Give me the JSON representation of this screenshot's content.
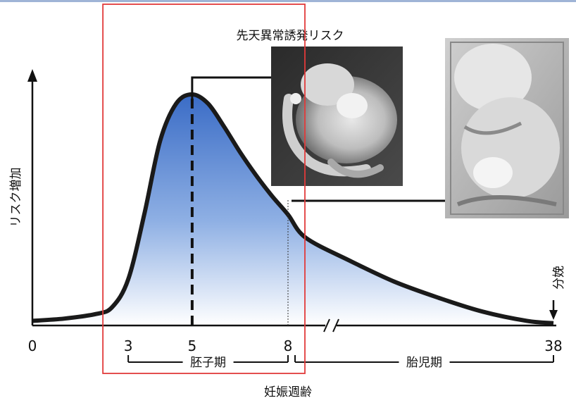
{
  "chart_data": {
    "type": "area",
    "title": "先天異常誘発リスク",
    "xlabel": "妊娠週齢",
    "ylabel": "リスク増加",
    "x_ticks": [
      "0",
      "3",
      "5",
      "8",
      "38"
    ],
    "x_tick_values": [
      0,
      3,
      5,
      8,
      38
    ],
    "axis_break_after": 8,
    "curve": {
      "x": [
        0,
        1,
        2,
        2.5,
        3,
        3.5,
        4,
        4.5,
        5,
        5.5,
        6,
        6.5,
        7,
        7.5,
        8,
        10,
        15,
        20,
        25,
        30,
        35,
        38
      ],
      "y": [
        2,
        3,
        5,
        8,
        20,
        48,
        80,
        96,
        100,
        96,
        86,
        75,
        65,
        56,
        48,
        38,
        28,
        19,
        12,
        6,
        2,
        1
      ]
    },
    "peak_x": 5,
    "periods": [
      {
        "label": "胚子期",
        "from": 3,
        "to": 8
      },
      {
        "label": "胎児期",
        "from": 8,
        "to": 38
      }
    ],
    "end_annotation": "分娩",
    "highlight_range": [
      3,
      8
    ],
    "colors": {
      "fill_top": "#3a6cc6",
      "fill_bottom": "#ffffff",
      "curve": "#1a1a1a",
      "highlight": "#e23a3a"
    }
  }
}
